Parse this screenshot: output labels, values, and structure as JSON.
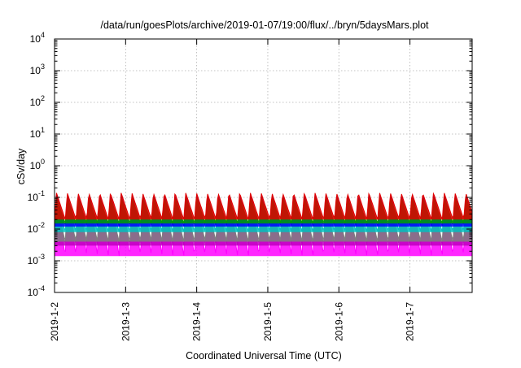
{
  "chart_data": {
    "type": "area",
    "title": "/data/run/goesPlots/archive/2019-01-07/19:00/flux/../bryn/5daysMars.plot",
    "xlabel": "Coordinated Universal Time (UTC)",
    "ylabel": "cSv/day",
    "yscale": "log",
    "ylim": [
      0.0001,
      10000
    ],
    "xlim": [
      "2019-01-02T00:00",
      "2019-01-07T21:00"
    ],
    "x_ticks": [
      "2019-1-2",
      "2019-1-3",
      "2019-1-4",
      "2019-1-5",
      "2019-1-6",
      "2019-1-7"
    ],
    "y_ticks": [
      {
        "base": "10",
        "exp": "4"
      },
      {
        "base": "10",
        "exp": "3"
      },
      {
        "base": "10",
        "exp": "2"
      },
      {
        "base": "10",
        "exp": "1"
      },
      {
        "base": "10",
        "exp": "0"
      },
      {
        "base": "10",
        "exp": "-1"
      },
      {
        "base": "10",
        "exp": "-2"
      },
      {
        "base": "10",
        "exp": "-3"
      },
      {
        "base": "10",
        "exp": "-4"
      }
    ],
    "grid": true,
    "cycles_per_day": 6.6,
    "series": [
      {
        "color": "#ff00ff",
        "peak": 0.09,
        "trough": 0.0014
      },
      {
        "color": "#c000c0",
        "peak": 0.07,
        "trough": 0.003
      },
      {
        "color": "#808080",
        "peak": 0.06,
        "trough": 0.004
      },
      {
        "color": "#00c0c0",
        "peak": 0.09,
        "trough": 0.008
      },
      {
        "color": "#0000ff",
        "peak": 0.12,
        "trough": 0.012
      },
      {
        "color": "#00a000",
        "peak": 0.1,
        "trough": 0.015
      },
      {
        "color": "#e00000",
        "peak": 0.14,
        "trough": 0.02
      }
    ]
  }
}
